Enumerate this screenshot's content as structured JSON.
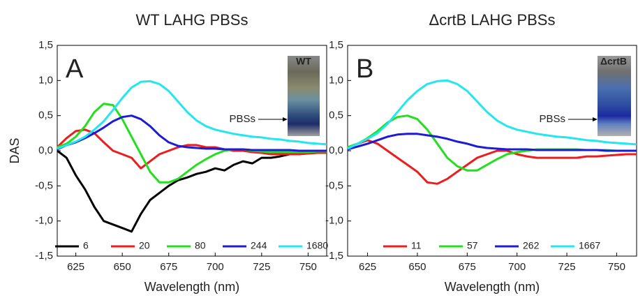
{
  "chart_data": [
    {
      "type": "line",
      "title": "WT LAHG PBSs",
      "panel_label": "A",
      "inset_label": "WT",
      "arrow_label": "PBSs",
      "xlabel": "Wavelength (nm)",
      "ylabel": "DAS",
      "x": [
        615,
        620,
        625,
        630,
        635,
        640,
        645,
        650,
        655,
        660,
        665,
        670,
        675,
        680,
        685,
        690,
        695,
        700,
        705,
        710,
        715,
        720,
        725,
        730,
        735,
        740,
        745,
        750,
        755,
        760
      ],
      "series": [
        {
          "name": "6",
          "color": "#000000",
          "values": [
            0.0,
            -0.1,
            -0.35,
            -0.55,
            -0.8,
            -1.0,
            -1.05,
            -1.1,
            -1.15,
            -0.9,
            -0.7,
            -0.6,
            -0.5,
            -0.42,
            -0.38,
            -0.33,
            -0.3,
            -0.25,
            -0.28,
            -0.2,
            -0.15,
            -0.18,
            -0.1,
            -0.1,
            -0.08,
            -0.05,
            -0.05,
            -0.03,
            -0.02,
            -0.02
          ]
        },
        {
          "name": "20",
          "color": "#ee1c1c",
          "values": [
            0.05,
            0.18,
            0.28,
            0.3,
            0.25,
            0.12,
            0.0,
            -0.05,
            -0.1,
            -0.25,
            -0.15,
            -0.05,
            0.0,
            0.05,
            0.08,
            0.08,
            0.05,
            0.05,
            0.02,
            0.0,
            0.0,
            -0.02,
            -0.03,
            -0.05,
            -0.05,
            -0.05,
            -0.05,
            -0.04,
            -0.03,
            -0.03
          ]
        },
        {
          "name": "80",
          "color": "#22e01c",
          "values": [
            0.05,
            0.1,
            0.2,
            0.35,
            0.55,
            0.67,
            0.65,
            0.45,
            0.2,
            -0.05,
            -0.3,
            -0.45,
            -0.45,
            -0.4,
            -0.3,
            -0.2,
            -0.12,
            -0.05,
            0.0,
            0.02,
            0.02,
            0.0,
            -0.01,
            -0.02,
            -0.02,
            -0.02,
            -0.02,
            -0.02,
            -0.01,
            -0.01
          ]
        },
        {
          "name": "244",
          "color": "#1c1cd6",
          "values": [
            0.02,
            0.08,
            0.12,
            0.18,
            0.25,
            0.33,
            0.42,
            0.48,
            0.5,
            0.45,
            0.35,
            0.22,
            0.12,
            0.07,
            0.05,
            0.04,
            0.03,
            0.03,
            0.02,
            0.02,
            0.02,
            0.01,
            0.01,
            0.01,
            0.01,
            0.01,
            0.0,
            0.0,
            0.0,
            0.0
          ]
        },
        {
          "name": "1680",
          "color": "#22e6f0",
          "values": [
            0.03,
            0.08,
            0.13,
            0.2,
            0.3,
            0.42,
            0.58,
            0.75,
            0.9,
            0.98,
            0.99,
            0.95,
            0.85,
            0.7,
            0.55,
            0.43,
            0.35,
            0.3,
            0.27,
            0.24,
            0.22,
            0.2,
            0.19,
            0.17,
            0.16,
            0.14,
            0.13,
            0.11,
            0.1,
            0.09
          ]
        }
      ],
      "xlim": [
        615,
        760
      ],
      "xticks": [
        625,
        650,
        675,
        700,
        725,
        750
      ],
      "ylim": [
        -1.5,
        1.5
      ],
      "yticks": [
        {
          "value": -1.5,
          "label": "-1,5"
        },
        {
          "value": -1.0,
          "label": "-1,0"
        },
        {
          "value": -0.5,
          "label": "-0,5"
        },
        {
          "value": 0,
          "label": "0,0"
        },
        {
          "value": 0.5,
          "label": "0,5"
        },
        {
          "value": 1.0,
          "label": "1,0"
        },
        {
          "value": 1.5,
          "label": "1,5"
        }
      ],
      "grid": false,
      "legend": "bottom"
    },
    {
      "type": "line",
      "title": "ΔcrtB LAHG PBSs",
      "panel_label": "B",
      "inset_label": "ΔcrtB",
      "arrow_label": "PBSs",
      "xlabel": "Wavelength (nm)",
      "x": [
        615,
        620,
        625,
        630,
        635,
        640,
        645,
        650,
        655,
        660,
        665,
        670,
        675,
        680,
        685,
        690,
        695,
        700,
        705,
        710,
        715,
        720,
        725,
        730,
        735,
        740,
        745,
        750,
        755,
        760
      ],
      "series": [
        {
          "name": "11",
          "color": "#ee1c1c",
          "values": [
            0.05,
            0.1,
            0.15,
            0.1,
            0.0,
            -0.1,
            -0.2,
            -0.3,
            -0.45,
            -0.47,
            -0.4,
            -0.3,
            -0.2,
            -0.1,
            -0.05,
            0.0,
            0.0,
            -0.05,
            -0.08,
            -0.1,
            -0.1,
            -0.1,
            -0.1,
            -0.1,
            -0.08,
            -0.08,
            -0.07,
            -0.06,
            -0.05,
            -0.05
          ]
        },
        {
          "name": "57",
          "color": "#22e01c",
          "values": [
            0.05,
            0.1,
            0.18,
            0.28,
            0.4,
            0.48,
            0.5,
            0.45,
            0.3,
            0.1,
            -0.1,
            -0.22,
            -0.28,
            -0.28,
            -0.2,
            -0.12,
            -0.05,
            -0.02,
            0.0,
            0.02,
            0.02,
            0.02,
            0.02,
            0.02,
            0.01,
            0.01,
            0.01,
            0.0,
            0.0,
            0.0
          ]
        },
        {
          "name": "262",
          "color": "#1c1cd6",
          "values": [
            0.02,
            0.06,
            0.1,
            0.15,
            0.2,
            0.23,
            0.24,
            0.24,
            0.22,
            0.2,
            0.17,
            0.13,
            0.1,
            0.06,
            0.04,
            0.03,
            0.02,
            0.02,
            0.02,
            0.01,
            0.01,
            0.01,
            0.01,
            0.01,
            0.01,
            0.01,
            0.0,
            0.0,
            0.0,
            0.0
          ]
        },
        {
          "name": "1667",
          "color": "#22e6f0",
          "values": [
            0.03,
            0.1,
            0.17,
            0.25,
            0.38,
            0.55,
            0.72,
            0.85,
            0.95,
            0.99,
            1.0,
            0.95,
            0.85,
            0.7,
            0.55,
            0.43,
            0.35,
            0.3,
            0.27,
            0.24,
            0.22,
            0.2,
            0.19,
            0.17,
            0.15,
            0.14,
            0.12,
            0.11,
            0.1,
            0.09
          ]
        }
      ],
      "xlim": [
        615,
        760
      ],
      "xticks": [
        625,
        650,
        675,
        700,
        725,
        750
      ],
      "ylim": [
        -1.5,
        1.5
      ],
      "yticks": [
        {
          "value": -1.5,
          "label": "-1,5"
        },
        {
          "value": -1.0,
          "label": "-1,0"
        },
        {
          "value": -0.5,
          "label": "-0,5"
        },
        {
          "value": 0,
          "label": "0,0"
        },
        {
          "value": 0.5,
          "label": "0,5"
        },
        {
          "value": 1.0,
          "label": "1,0"
        },
        {
          "value": 1.5,
          "label": "1,5"
        }
      ],
      "grid": false,
      "legend": "bottom"
    }
  ]
}
